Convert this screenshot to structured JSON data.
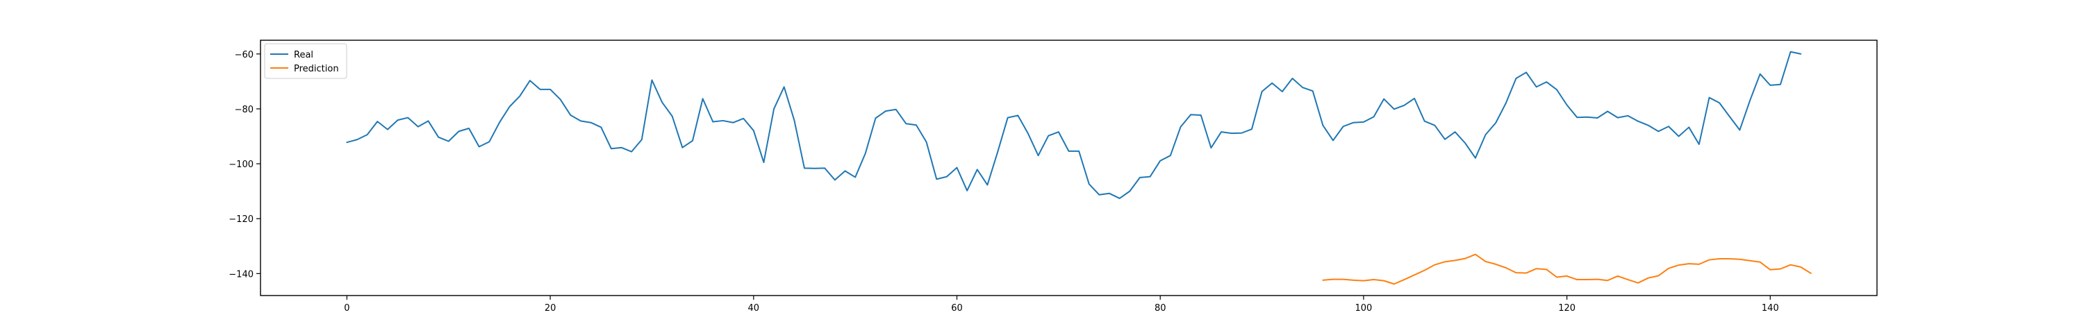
{
  "chart_data": {
    "type": "line",
    "title": "",
    "xlabel": "",
    "ylabel": "",
    "xlim": [
      -8.5,
      150.5
    ],
    "ylim": [
      -148,
      -55
    ],
    "xticks": [
      0,
      20,
      40,
      60,
      80,
      100,
      120,
      140
    ],
    "yticks": [
      -60,
      -80,
      -100,
      -120,
      -140
    ],
    "grid": false,
    "legend_position": "top-left",
    "series": [
      {
        "name": "Real",
        "color": "#1f77b4",
        "x_start": 0,
        "values": [
          -92.2,
          -91.2,
          -89.4,
          -84.6,
          -87.5,
          -84.1,
          -83.2,
          -86.5,
          -84.4,
          -90.3,
          -91.8,
          -88.2,
          -87.1,
          -93.8,
          -92.0,
          -85.0,
          -79.2,
          -75.4,
          -69.7,
          -72.9,
          -72.9,
          -76.6,
          -82.3,
          -84.4,
          -85.0,
          -86.7,
          -94.5,
          -94.1,
          -95.6,
          -91.2,
          -69.5,
          -77.6,
          -82.7,
          -94.1,
          -91.6,
          -76.3,
          -84.7,
          -84.3,
          -85.0,
          -83.5,
          -87.9,
          -99.5,
          -80.0,
          -72.0,
          -84.1,
          -101.6,
          -101.7,
          -101.6,
          -105.9,
          -102.6,
          -104.9,
          -96.2,
          -83.4,
          -80.8,
          -80.2,
          -85.4,
          -85.9,
          -92.1,
          -105.6,
          -104.7,
          -101.4,
          -109.8,
          -102.1,
          -107.7,
          -95.8,
          -83.2,
          -82.4,
          -89.0,
          -97.0,
          -89.8,
          -88.4,
          -95.4,
          -95.4,
          -107.4,
          -111.3,
          -110.8,
          -112.6,
          -110.0,
          -105.0,
          -104.7,
          -98.9,
          -97.0,
          -86.6,
          -82.1,
          -82.3,
          -94.2,
          -88.4,
          -88.9,
          -88.8,
          -87.4,
          -73.7,
          -70.6,
          -73.7,
          -68.9,
          -72.2,
          -73.5,
          -86.0,
          -91.5,
          -86.4,
          -85.0,
          -84.8,
          -82.9,
          -76.4,
          -80.1,
          -78.7,
          -76.2,
          -84.5,
          -86.0,
          -91.1,
          -88.4,
          -92.5,
          -97.9,
          -89.4,
          -85.1,
          -77.9,
          -68.9,
          -66.7,
          -72.0,
          -70.2,
          -73.0,
          -78.6,
          -83.1,
          -83.0,
          -83.3,
          -80.9,
          -83.2,
          -82.5,
          -84.5,
          -86.0,
          -88.2,
          -86.4,
          -90.0,
          -86.7,
          -92.9,
          -75.9,
          -77.8,
          -82.8,
          -87.7,
          -77.0,
          -67.3,
          -71.4,
          -71.1,
          -59.2,
          -60.0
        ]
      },
      {
        "name": "Prediction",
        "color": "#ff7f0e",
        "x_start": 96,
        "values": [
          -142.4,
          -142.1,
          -142.1,
          -142.4,
          -142.6,
          -142.2,
          -142.6,
          -143.8,
          -142.2,
          -140.5,
          -138.8,
          -136.8,
          -135.7,
          -135.2,
          -134.5,
          -133.0,
          -135.6,
          -136.6,
          -137.9,
          -139.7,
          -139.8,
          -138.2,
          -138.5,
          -141.3,
          -140.9,
          -142.2,
          -142.2,
          -142.1,
          -142.5,
          -140.9,
          -142.2,
          -143.4,
          -141.6,
          -140.8,
          -138.1,
          -136.9,
          -136.4,
          -136.6,
          -135.0,
          -134.6,
          -134.6,
          -134.8,
          -135.3,
          -135.8,
          -138.6,
          -138.3,
          -136.8,
          -137.6,
          -139.9
        ]
      }
    ]
  }
}
